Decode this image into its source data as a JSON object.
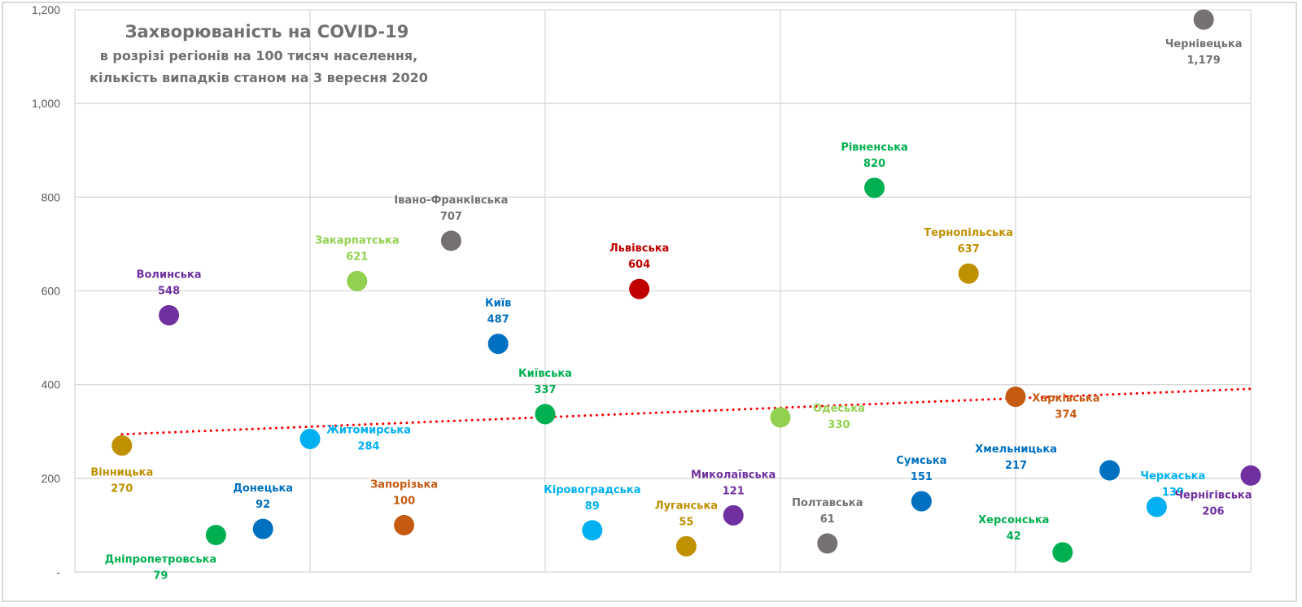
{
  "chart_data": {
    "type": "scatter",
    "title": "Захворюваність на COVID-19",
    "subtitle_lines": [
      "в розрізі регіонів на 100 тисяч населення,",
      "кількість випадків станом на 3 вересня 2020"
    ],
    "xlabel": "",
    "ylabel": "",
    "xlim": [
      0,
      25
    ],
    "ylim": [
      0,
      1200
    ],
    "x_gridlines": [
      5,
      10,
      15,
      20
    ],
    "y_ticks": [
      0,
      200,
      400,
      600,
      800,
      1000,
      1200
    ],
    "y_tick_labels": [
      "-",
      "200",
      "400",
      "600",
      "800",
      "1,000",
      "1,200"
    ],
    "grid": true,
    "legend": "none",
    "trendline": {
      "type": "linear",
      "style": "dotted",
      "color": "#ff0000",
      "start": {
        "x": 1,
        "y": 294
      },
      "end": {
        "x": 25,
        "y": 391
      }
    },
    "points": [
      {
        "x": 1,
        "name": "Вінницька",
        "value": 270,
        "label": "270",
        "color": "#bf9000",
        "label_pos": "below"
      },
      {
        "x": 2,
        "name": "Волинська",
        "value": 548,
        "label": "548",
        "color": "#7030a0",
        "label_pos": "above"
      },
      {
        "x": 3,
        "name": "Дніпропетровська",
        "value": 79,
        "label": "79",
        "color": "#00b050",
        "label_pos": "below-left"
      },
      {
        "x": 4,
        "name": "Донецька",
        "value": 92,
        "label": "92",
        "color": "#0070c0",
        "label_pos": "above"
      },
      {
        "x": 5,
        "name": "Житомирська",
        "value": 284,
        "label": "284",
        "color": "#00b0f0",
        "label_pos": "right"
      },
      {
        "x": 6,
        "name": "Закарпатська",
        "value": 621,
        "label": "621",
        "color": "#92d050",
        "label_pos": "above"
      },
      {
        "x": 7,
        "name": "Запорізька",
        "value": 100,
        "label": "100",
        "color": "#c55a11",
        "label_pos": "above"
      },
      {
        "x": 8,
        "name": "Івано-Франківська",
        "value": 707,
        "label": "707",
        "color": "#767171",
        "label_pos": "above"
      },
      {
        "x": 9,
        "name": "Київ",
        "value": 487,
        "label": "487",
        "color": "#0070c0",
        "label_pos": "above"
      },
      {
        "x": 10,
        "name": "Київська",
        "value": 337,
        "label": "337",
        "color": "#00b050",
        "label_pos": "above"
      },
      {
        "x": 11,
        "name": "Кіровоградська",
        "value": 89,
        "label": "89",
        "color": "#00b0f0",
        "label_pos": "above"
      },
      {
        "x": 12,
        "name": "Львівська",
        "value": 604,
        "label": "604",
        "color": "#c00000",
        "label_pos": "above"
      },
      {
        "x": 13,
        "name": "Луганська",
        "value": 55,
        "label": "55",
        "color": "#bf9000",
        "label_pos": "above"
      },
      {
        "x": 14,
        "name": "Миколаївська",
        "value": 121,
        "label": "121",
        "color": "#7030a0",
        "label_pos": "above"
      },
      {
        "x": 15,
        "name": "Одеська",
        "value": 330,
        "label": "330",
        "color": "#92d050",
        "label_pos": "right"
      },
      {
        "x": 16,
        "name": "Полтавська",
        "value": 61,
        "label": "61",
        "color": "#767171",
        "label_pos": "above"
      },
      {
        "x": 17,
        "name": "Рівненська",
        "value": 820,
        "label": "820",
        "color": "#00b050",
        "label_pos": "above"
      },
      {
        "x": 18,
        "name": "Сумська",
        "value": 151,
        "label": "151",
        "color": "#0070c0",
        "label_pos": "above"
      },
      {
        "x": 19,
        "name": "Тернопільська",
        "value": 637,
        "label": "637",
        "color": "#bf9000",
        "label_pos": "above"
      },
      {
        "x": 20,
        "name": "Харківська",
        "value": 374,
        "label": "374",
        "color": "#c55a11",
        "label_pos": "right"
      },
      {
        "x": 21,
        "name": "Херсонська",
        "value": 42,
        "label": "42",
        "color": "#00b050",
        "label_pos": "above-left"
      },
      {
        "x": 22,
        "name": "Хмельницька",
        "value": 217,
        "label": "217",
        "color": "#0070c0",
        "label_pos": "left"
      },
      {
        "x": 23,
        "name": "Черкаська",
        "value": 139,
        "label": "139",
        "color": "#00b0f0",
        "label_pos": "above-right"
      },
      {
        "x": 24,
        "name": "Чернівецька",
        "value": 1179,
        "label": "1,179",
        "color": "#767171",
        "label_pos": "below"
      },
      {
        "x": 25,
        "name": "Чернігівська",
        "value": 206,
        "label": "206",
        "color": "#7030a0",
        "label_pos": "below-left"
      }
    ]
  }
}
